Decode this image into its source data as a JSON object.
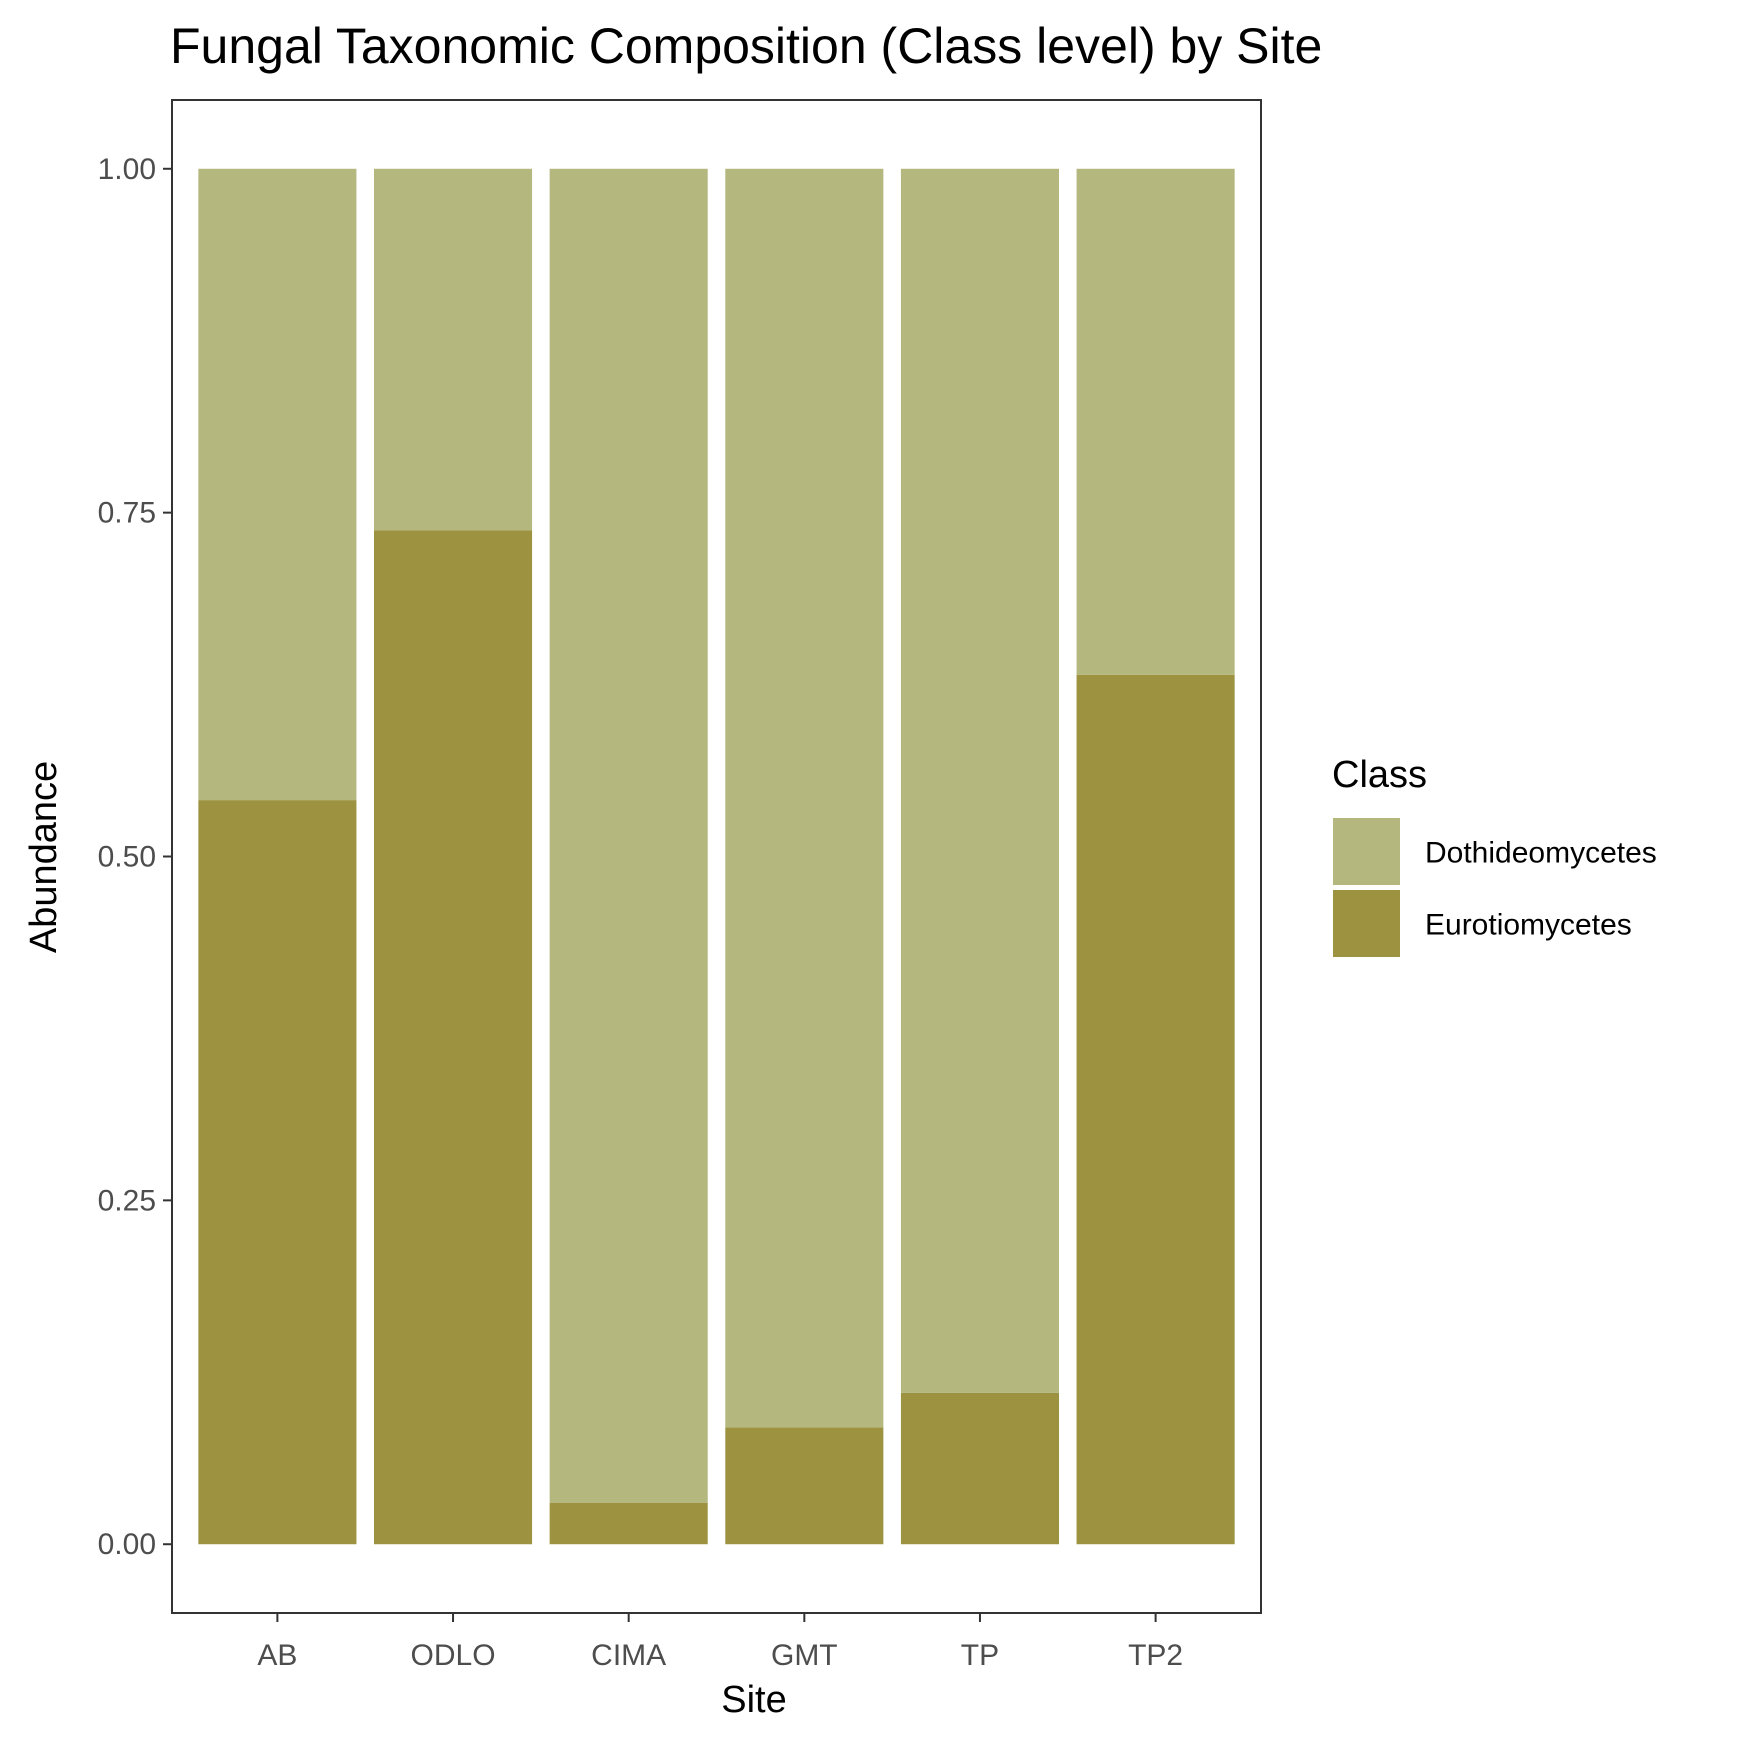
{
  "chart_data": {
    "type": "bar",
    "stacked": true,
    "title": "Fungal Taxonomic Composition (Class level) by Site",
    "xlabel": "Site",
    "ylabel": "Abundance",
    "categories": [
      "AB",
      "ODLO",
      "CIMA",
      "GMT",
      "TP",
      "TP2"
    ],
    "ylim": [
      -0.05,
      1.05
    ],
    "yticks": [
      0.0,
      0.25,
      0.5,
      0.75,
      1.0
    ],
    "ytick_labels": [
      "0.00",
      "0.25",
      "0.50",
      "0.75",
      "1.00"
    ],
    "grid": false,
    "legend": {
      "title": "Class",
      "position": "right"
    },
    "series": [
      {
        "name": "Eurotiomycetes",
        "color": "#9d9240",
        "values": [
          0.541,
          0.737,
          0.03,
          0.085,
          0.11,
          0.632
        ]
      },
      {
        "name": "Dothideomycetes",
        "color": "#b4b87e",
        "values": [
          0.459,
          0.263,
          0.97,
          0.915,
          0.89,
          0.368
        ]
      }
    ],
    "legend_order": [
      "Dothideomycetes",
      "Eurotiomycetes"
    ]
  }
}
